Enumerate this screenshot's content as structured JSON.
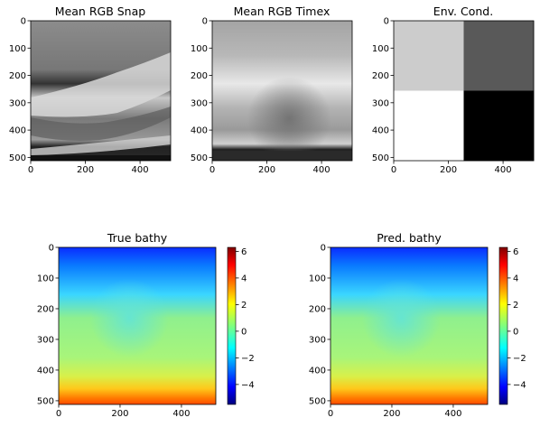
{
  "chart_data": [
    {
      "type": "heatmap",
      "title": "Mean RGB Snap",
      "colormap": "gray",
      "xlabel": "",
      "ylabel": "",
      "xlim": [
        0,
        512
      ],
      "ylim": [
        512,
        0
      ],
      "xticks": [
        0,
        200,
        400
      ],
      "yticks": [
        0,
        100,
        200,
        300,
        400,
        500
      ],
      "description_values": {
        "min": 0,
        "max": 255
      }
    },
    {
      "type": "heatmap",
      "title": "Mean RGB Timex",
      "colormap": "gray",
      "xlabel": "",
      "ylabel": "",
      "xlim": [
        0,
        512
      ],
      "ylim": [
        512,
        0
      ],
      "xticks": [
        0,
        200,
        400
      ],
      "yticks": [
        0,
        100,
        200,
        300,
        400,
        500
      ]
    },
    {
      "type": "heatmap",
      "title": "Env. Cond.",
      "colormap": "gray",
      "xlabel": "",
      "ylabel": "",
      "xlim": [
        0,
        512
      ],
      "ylim": [
        512,
        0
      ],
      "xticks": [
        0,
        200,
        400
      ],
      "yticks": [
        0,
        100,
        200,
        300,
        400,
        500
      ],
      "grid_values": [
        [
          0.8,
          0.35
        ],
        [
          1.0,
          0.0
        ]
      ]
    },
    {
      "type": "heatmap",
      "title": "True bathy",
      "colormap": "jet",
      "xlabel": "",
      "ylabel": "",
      "xlim": [
        0,
        512
      ],
      "ylim": [
        512,
        0
      ],
      "xticks": [
        0,
        200,
        400
      ],
      "yticks": [
        0,
        100,
        200,
        300,
        400,
        500
      ],
      "colorbar": {
        "range": [
          -5.5,
          6.3
        ],
        "ticks": [
          "6",
          "4",
          "2",
          "0",
          "−2",
          "−4"
        ],
        "tick_values": [
          6,
          4,
          2,
          0,
          -2,
          -4
        ]
      }
    },
    {
      "type": "heatmap",
      "title": "Pred. bathy",
      "colormap": "jet",
      "xlabel": "",
      "ylabel": "",
      "xlim": [
        0,
        512
      ],
      "ylim": [
        512,
        0
      ],
      "xticks": [
        0,
        200,
        400
      ],
      "yticks": [
        0,
        100,
        200,
        300,
        400,
        500
      ],
      "colorbar": {
        "range": [
          -5.5,
          6.3
        ],
        "ticks": [
          "6",
          "4",
          "2",
          "0",
          "−2",
          "−4"
        ],
        "tick_values": [
          6,
          4,
          2,
          0,
          -2,
          -4
        ]
      }
    }
  ]
}
